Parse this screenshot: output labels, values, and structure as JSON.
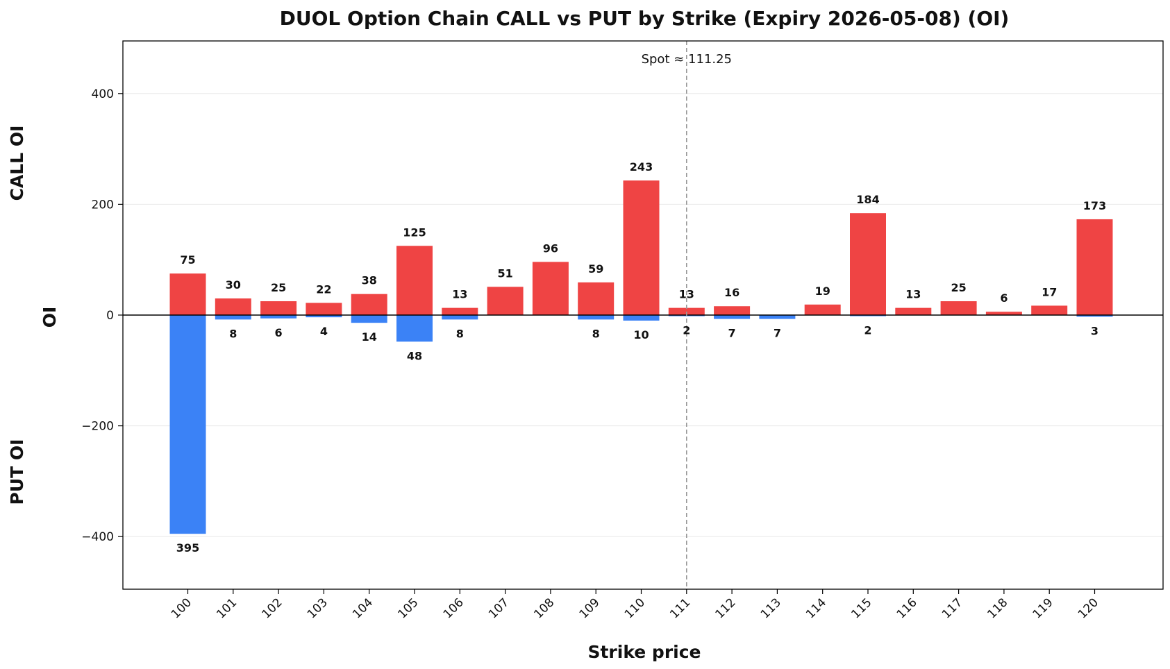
{
  "chart_data": {
    "type": "bar",
    "title": "DUOL Option Chain CALL vs PUT by Strike (Expiry 2026-05-08) (OI)",
    "xlabel": "Strike price",
    "ylabel": "OI",
    "ylabel_top": "CALL OI",
    "ylabel_bottom": "PUT OI",
    "categories": [
      "100",
      "101",
      "102",
      "103",
      "104",
      "105",
      "106",
      "107",
      "108",
      "109",
      "110",
      "111",
      "112",
      "113",
      "114",
      "115",
      "116",
      "117",
      "118",
      "119",
      "120"
    ],
    "series": [
      {
        "key": "call",
        "color": "#ef4444",
        "values": [
          75,
          30,
          25,
          22,
          38,
          125,
          13,
          51,
          96,
          59,
          243,
          13,
          16,
          0,
          19,
          184,
          13,
          25,
          6,
          17,
          173
        ]
      },
      {
        "key": "put",
        "color": "#3b82f6",
        "values": [
          395,
          8,
          6,
          4,
          14,
          48,
          8,
          0,
          0,
          8,
          10,
          2,
          7,
          7,
          0,
          2,
          0,
          0,
          0,
          0,
          3
        ]
      }
    ],
    "ylim": [
      -495,
      495
    ],
    "yticks": [
      -400,
      -200,
      0,
      200,
      400
    ],
    "ytick_labels": [
      "−400",
      "−200",
      "0",
      "200",
      "400"
    ],
    "spot": {
      "value": 111.25,
      "label": "Spot ≈ 111.25"
    },
    "grid": "horizontal"
  }
}
